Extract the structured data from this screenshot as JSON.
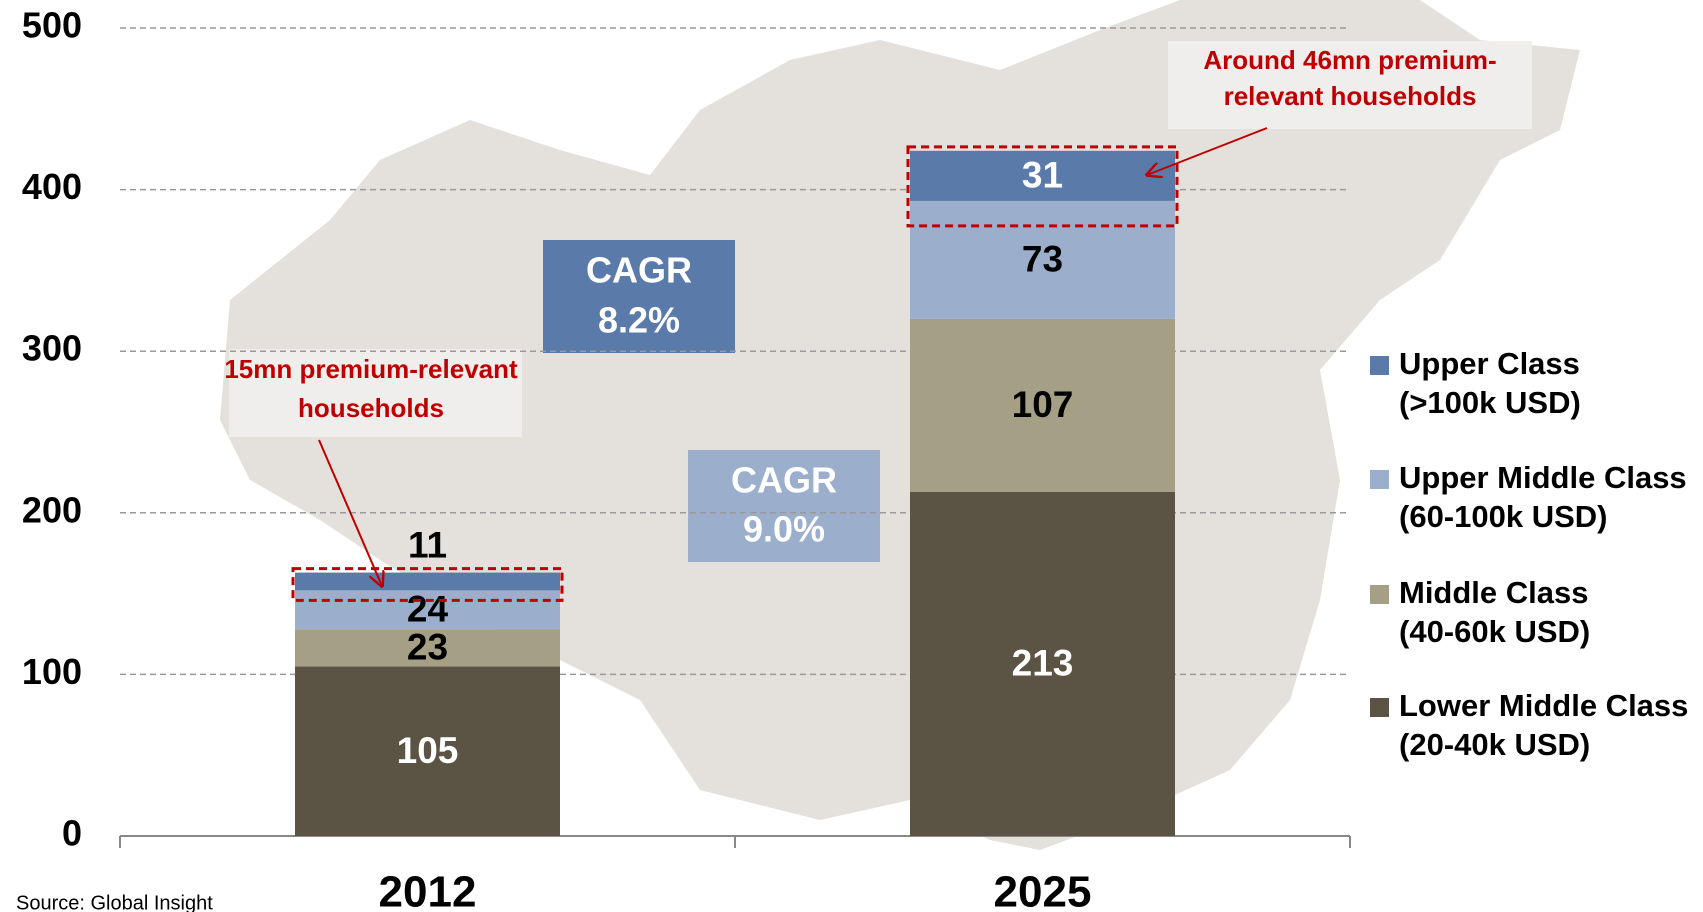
{
  "chart_data": {
    "type": "stacked_bar",
    "categories": [
      "2012",
      "2025"
    ],
    "series": [
      {
        "name": "Lower Middle Class (20-40k USD)",
        "color": "#5b5444",
        "label_color": "#ffffff",
        "values": [
          105,
          213
        ]
      },
      {
        "name": "Middle Class (40-60k USD)",
        "color": "#a59f86",
        "label_color": "#000000",
        "values": [
          23,
          107
        ]
      },
      {
        "name": "Upper Middle Class (60-100k USD)",
        "color": "#9bafcc",
        "label_color": "#000000",
        "values": [
          24,
          73
        ]
      },
      {
        "name": "Upper Class (>100k USD)",
        "color": "#5a7aa9",
        "label_color": "#ffffff",
        "values": [
          11,
          31
        ]
      }
    ],
    "ylim": [
      0,
      500
    ],
    "yticks": [
      0,
      100,
      200,
      300,
      400,
      500
    ],
    "grid": true,
    "legend": "right",
    "annotations": {
      "cagr_upper": [
        "CAGR",
        "8.2%"
      ],
      "cagr_upper_middle": [
        "CAGR",
        "9.0%"
      ],
      "premium_2012": [
        "15mn premium-relevant",
        "households"
      ],
      "premium_2025": [
        "Around 46mn premium-",
        "relevant households"
      ]
    },
    "source": "Source: Global Insight"
  }
}
